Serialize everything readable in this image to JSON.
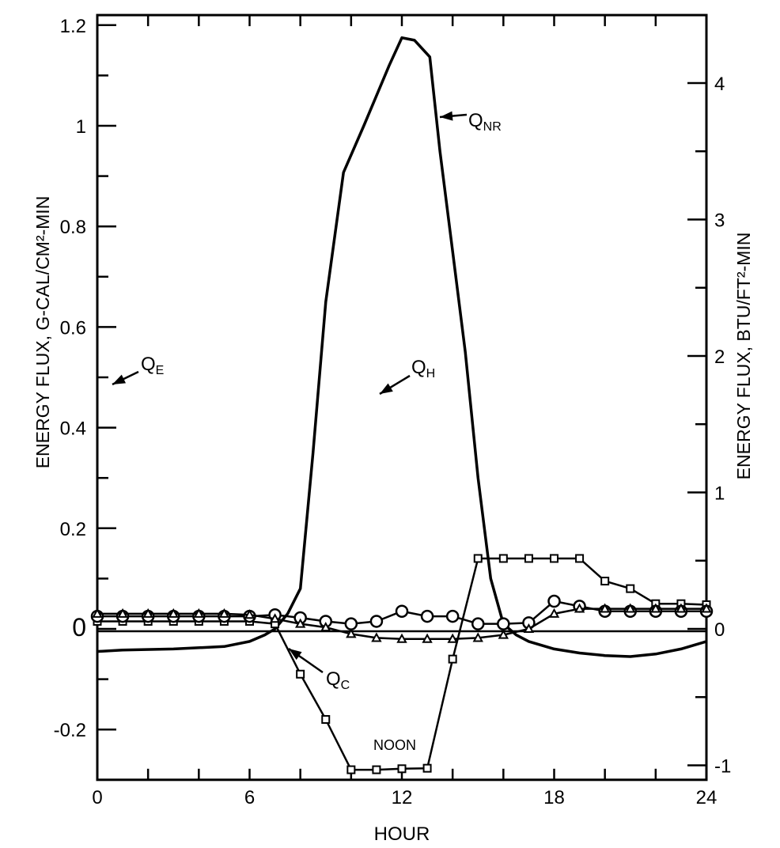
{
  "chart_data": {
    "type": "line",
    "title": "",
    "xlabel": "HOUR",
    "ylabel": "ENERGY FLUX,  G-CAL/CM²-MIN",
    "ylabel_right": "ENERGY FLUX,  BTU/FT²-MIN",
    "xlim": [
      0,
      24
    ],
    "ylim": [
      -0.3,
      1.22
    ],
    "x_ticks": [
      "0",
      "6",
      "12",
      "18",
      "24"
    ],
    "y_ticks": [
      {
        "value": 1.2,
        "label": "1.2"
      },
      {
        "value": 1,
        "label": "1"
      },
      {
        "value": 0.8,
        "label": "0.8"
      },
      {
        "value": 0.6,
        "label": "0.6"
      },
      {
        "value": 0.4,
        "label": "0.4"
      },
      {
        "value": 0.2,
        "label": "0.2"
      },
      {
        "value": 0,
        "label": "0"
      },
      {
        "value": -0.2,
        "label": "-0.2"
      }
    ],
    "y_right_ticks": [
      "4",
      "3",
      "2",
      "1",
      "0",
      "-1"
    ],
    "right_axis_factor": 3.687,
    "grid": false,
    "series": [
      {
        "name": "Q_NR",
        "label_main": "Q",
        "label_sub": "NR",
        "marker": "none",
        "x": [
          0,
          1,
          3,
          5,
          6,
          6.6,
          7,
          7.5,
          8,
          8.5,
          9,
          9.7,
          10.5,
          11.5,
          12,
          12.5,
          13.1,
          13.5,
          14,
          14.5,
          15,
          15.5,
          16,
          16.5,
          17,
          18,
          19,
          20,
          21,
          22,
          23,
          24
        ],
        "y": [
          -0.045,
          -0.042,
          -0.04,
          -0.035,
          -0.025,
          -0.012,
          0.0,
          0.03,
          0.08,
          0.35,
          0.65,
          0.907,
          1.0,
          1.12,
          1.175,
          1.17,
          1.137,
          0.95,
          0.75,
          0.55,
          0.3,
          0.1,
          0.01,
          -0.012,
          -0.025,
          -0.04,
          -0.048,
          -0.053,
          -0.055,
          -0.05,
          -0.04,
          -0.025
        ]
      },
      {
        "name": "Q_C",
        "label_main": "Q",
        "label_sub": "C",
        "marker": "square",
        "x": [
          0,
          1,
          2,
          3,
          4,
          5,
          6,
          7,
          8,
          9,
          10,
          11,
          12,
          13,
          14,
          15,
          16,
          17,
          18,
          19,
          20,
          21,
          22,
          23,
          24
        ],
        "y": [
          0.015,
          0.015,
          0.015,
          0.015,
          0.015,
          0.015,
          0.015,
          0.01,
          -0.09,
          -0.18,
          -0.28,
          -0.28,
          -0.278,
          -0.277,
          -0.06,
          0.14,
          0.14,
          0.14,
          0.14,
          0.14,
          0.095,
          0.08,
          0.05,
          0.05,
          0.048
        ]
      },
      {
        "name": "Q_H",
        "label_main": "Q",
        "label_sub": "H",
        "marker": "circle",
        "x": [
          0,
          1,
          2,
          3,
          4,
          5,
          6,
          7,
          8,
          9,
          10,
          11,
          12,
          13,
          14,
          15,
          16,
          17,
          18,
          19,
          20,
          21,
          22,
          23,
          24
        ],
        "y": [
          0.025,
          0.025,
          0.025,
          0.025,
          0.025,
          0.025,
          0.025,
          0.028,
          0.022,
          0.015,
          0.01,
          0.015,
          0.035,
          0.025,
          0.025,
          0.01,
          0.01,
          0.012,
          0.055,
          0.045,
          0.035,
          0.035,
          0.035,
          0.035,
          0.035
        ]
      },
      {
        "name": "Q_E",
        "label_main": "Q",
        "label_sub": "E",
        "marker": "triangle",
        "x": [
          0,
          1,
          2,
          3,
          4,
          5,
          6,
          7,
          8,
          9,
          10,
          11,
          12,
          13,
          14,
          15,
          16,
          17,
          18,
          19,
          20,
          21,
          22,
          23,
          24
        ],
        "y": [
          0.03,
          0.03,
          0.03,
          0.03,
          0.03,
          0.03,
          0.028,
          0.02,
          0.01,
          0.003,
          -0.01,
          -0.018,
          -0.02,
          -0.02,
          -0.02,
          -0.018,
          -0.012,
          0.0,
          0.03,
          0.04,
          0.04,
          0.04,
          0.04,
          0.04,
          0.04
        ]
      }
    ],
    "annotations": [
      {
        "text": "NOON"
      }
    ]
  }
}
